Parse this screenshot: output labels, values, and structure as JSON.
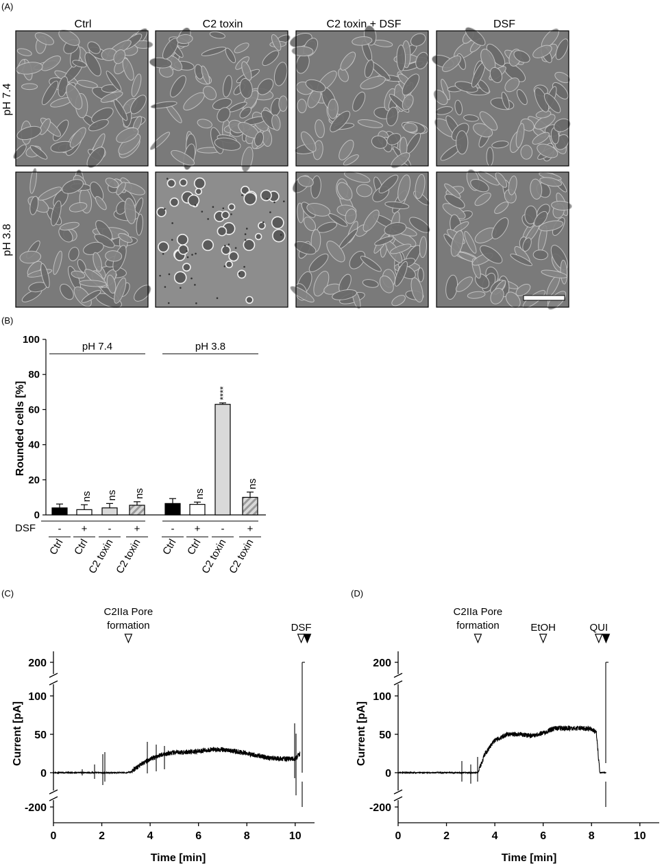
{
  "panel_labels": [
    "(A)",
    "(B)",
    "(C)",
    "(D)"
  ],
  "panel_a": {
    "columns": [
      "Ctrl",
      "C2 toxin",
      "C2 toxin + DSF",
      "DSF"
    ],
    "rows": [
      "pH 7.4",
      "pH 3.8"
    ],
    "rounded_cells_shown": [
      [
        false,
        false,
        false,
        false
      ],
      [
        false,
        true,
        false,
        false
      ]
    ],
    "scale_bar": true
  },
  "chart_data": [
    {
      "type": "bar",
      "panel": "(B)",
      "ylabel": "Rounded cells [%]",
      "ylim": [
        0,
        100
      ],
      "yticks": [
        0,
        20,
        40,
        60,
        80,
        100
      ],
      "groups": [
        "pH 7.4",
        "pH 3.8"
      ],
      "dsf_row_label": "DSF",
      "categories": [
        "Ctrl",
        "Ctrl",
        "C2 toxin",
        "C2 toxin",
        "Ctrl",
        "Ctrl",
        "C2 toxin",
        "C2 toxin"
      ],
      "dsf": [
        "-",
        "+",
        "-",
        "+",
        "-",
        "+",
        "-",
        "+"
      ],
      "values": [
        4,
        3,
        4,
        5.5,
        6.5,
        6,
        63,
        10
      ],
      "errors": [
        2.2,
        2.8,
        2.5,
        2.0,
        2.8,
        1.3,
        0.8,
        3.0
      ],
      "annotations": [
        "",
        "ns",
        "ns",
        "ns",
        "",
        "ns",
        "****",
        "ns"
      ],
      "fill_styles": [
        "black",
        "white",
        "lightgray",
        "hatched",
        "black",
        "white",
        "lightgray",
        "hatched"
      ],
      "colors": {
        "black": "#000000",
        "lightgray": "#d9d9d9",
        "hatch": "#9a9a9a"
      }
    },
    {
      "type": "line",
      "panel": "(C)",
      "xlabel": "Time [min]",
      "ylabel": "Current [pA]",
      "xlim": [
        0,
        10.8
      ],
      "xticks": [
        0,
        2,
        4,
        6,
        8,
        10
      ],
      "yticks": [
        -200,
        0,
        50,
        100,
        200
      ],
      "broken_axis": true,
      "annotations": [
        {
          "text": "C2IIa Pore formation",
          "x": 3.1,
          "marker": "open-triangle"
        },
        {
          "text": "DSF",
          "x": 10.25,
          "marker": "open-triangle"
        },
        {
          "text": "",
          "x": 10.5,
          "marker": "filled-triangle"
        }
      ],
      "x": [
        0,
        1.0,
        2.0,
        2.4,
        3.0,
        3.2,
        3.5,
        4.0,
        4.5,
        5.0,
        5.5,
        6.0,
        6.5,
        7.0,
        7.5,
        8.0,
        8.5,
        9.0,
        9.5,
        10.0,
        10.2
      ],
      "y": [
        0,
        0,
        0,
        0,
        0,
        1,
        8,
        18,
        24,
        26,
        27,
        28,
        30,
        30,
        28,
        25,
        22,
        19,
        18,
        18,
        25
      ]
    },
    {
      "type": "line",
      "panel": "(D)",
      "xlabel": "Time [min]",
      "ylabel": "Current [pA]",
      "xlim": [
        0,
        10.8
      ],
      "xticks": [
        0,
        2,
        4,
        6,
        8,
        10
      ],
      "yticks": [
        -200,
        0,
        50,
        100,
        200
      ],
      "broken_axis": true,
      "annotations": [
        {
          "text": "C2IIa Pore formation",
          "x": 3.3,
          "marker": "open-triangle"
        },
        {
          "text": "EtOH",
          "x": 6.0,
          "marker": "open-triangle"
        },
        {
          "text": "QUI",
          "x": 8.3,
          "marker": "open-triangle"
        },
        {
          "text": "",
          "x": 8.6,
          "marker": "filled-triangle"
        }
      ],
      "x": [
        0,
        2.0,
        3.0,
        3.3,
        3.6,
        4.0,
        4.5,
        5.0,
        5.5,
        6.0,
        6.5,
        7.0,
        7.5,
        8.0,
        8.2,
        8.3,
        8.35,
        8.6
      ],
      "y": [
        0,
        0,
        0,
        0,
        25,
        42,
        50,
        50,
        48,
        52,
        58,
        58,
        58,
        57,
        52,
        15,
        0,
        0
      ]
    }
  ]
}
